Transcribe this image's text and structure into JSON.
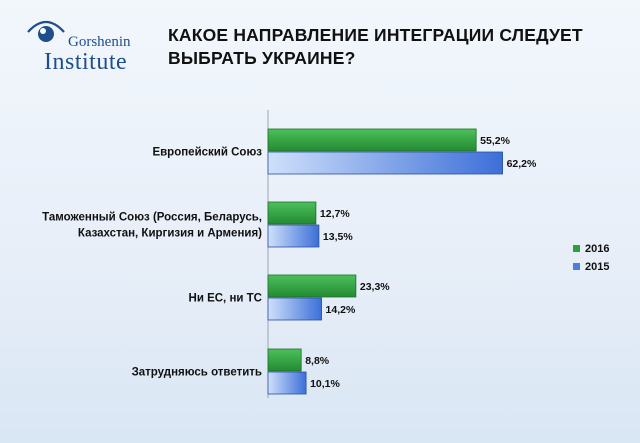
{
  "header": {
    "logo_line1": "Gorshenin",
    "logo_line2": "Institute",
    "title": "КАКОЕ НАПРАВЛЕНИЕ ИНТЕГРАЦИИ СЛЕДУЕТ ВЫБРАТЬ УКРАИНЕ?"
  },
  "colors": {
    "series_2016": "#2e9e3e",
    "series_2015": "#4a7fe0",
    "logo_blue": "#1f4e8c"
  },
  "chart_data": {
    "type": "bar",
    "orientation": "horizontal",
    "categories": [
      [
        "Европейский Союз"
      ],
      [
        "Таможенный Союз (Россия, Беларусь,",
        "Казахстан, Киргизия и Армения)"
      ],
      [
        "Ни ЕС, ни ТС"
      ],
      [
        "Затрудняюсь ответить"
      ]
    ],
    "series": [
      {
        "name": "2016",
        "values": [
          55.2,
          12.7,
          23.3,
          8.8
        ],
        "labels": [
          "55,2%",
          "12,7%",
          "23,3%",
          "8,8%"
        ]
      },
      {
        "name": "2015",
        "values": [
          62.2,
          13.5,
          14.2,
          10.1
        ],
        "labels": [
          "62,2%",
          "13,5%",
          "14,2%",
          "10,1%"
        ]
      }
    ],
    "xlim": [
      0,
      70
    ],
    "grid": false,
    "legend": "right"
  }
}
